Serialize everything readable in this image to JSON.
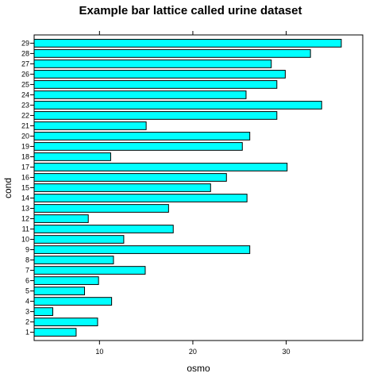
{
  "chart_data": {
    "type": "bar",
    "orientation": "horizontal",
    "title": "Example bar lattice called urine dataset",
    "xlabel": "osmo",
    "ylabel": "cond",
    "xlim": [
      3,
      38.2
    ],
    "xticks": [
      10,
      20,
      30
    ],
    "bar_color": "#00FFFF",
    "bar_edge": "#000000",
    "categories": [
      "1",
      "2",
      "3",
      "4",
      "5",
      "6",
      "7",
      "8",
      "9",
      "10",
      "11",
      "12",
      "13",
      "14",
      "15",
      "16",
      "17",
      "18",
      "19",
      "20",
      "21",
      "22",
      "23",
      "24",
      "25",
      "26",
      "27",
      "28",
      "29"
    ],
    "values": [
      7.5,
      9.8,
      5.0,
      11.3,
      8.4,
      9.9,
      14.9,
      11.5,
      26.1,
      12.6,
      17.9,
      8.8,
      17.4,
      25.8,
      21.9,
      23.6,
      30.1,
      11.2,
      25.3,
      26.1,
      15.0,
      29.0,
      33.8,
      25.7,
      29.0,
      29.9,
      28.4,
      32.6,
      35.9
    ]
  }
}
